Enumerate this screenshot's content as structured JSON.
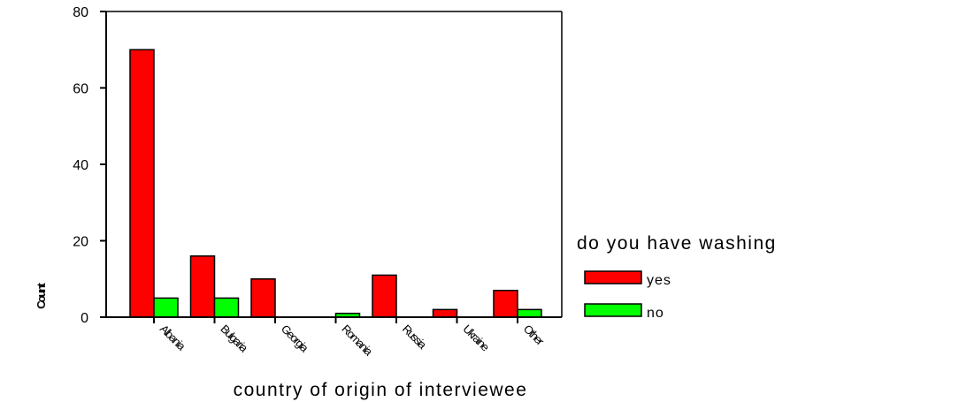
{
  "chart_data": {
    "type": "bar",
    "title": "",
    "xlabel": "country of origin of interviewee",
    "ylabel": "Count",
    "ylim": [
      0,
      80
    ],
    "yticks": [
      0,
      20,
      40,
      60,
      80
    ],
    "grid": false,
    "legend_placement": "right",
    "legend_title": "do you have washing",
    "categories": [
      "Albania",
      "Bulgaria",
      "Georgia",
      "Romania",
      "Russia",
      "Ukraine",
      "Other"
    ],
    "series": [
      {
        "name": "yes",
        "color": "#ff0000",
        "values": [
          70,
          16,
          10,
          0,
          11,
          2,
          7
        ]
      },
      {
        "name": "no",
        "color": "#00ff00",
        "values": [
          5,
          5,
          0,
          1,
          0,
          0,
          2
        ]
      }
    ]
  }
}
